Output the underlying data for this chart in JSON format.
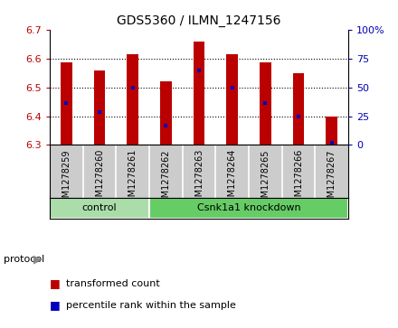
{
  "title": "GDS5360 / ILMN_1247156",
  "samples": [
    "GSM1278259",
    "GSM1278260",
    "GSM1278261",
    "GSM1278262",
    "GSM1278263",
    "GSM1278264",
    "GSM1278265",
    "GSM1278266",
    "GSM1278267"
  ],
  "transformed_counts": [
    6.585,
    6.558,
    6.615,
    6.52,
    6.658,
    6.615,
    6.585,
    6.548,
    6.397
  ],
  "percentile_ranks": [
    6.445,
    6.415,
    6.5,
    6.368,
    6.558,
    6.5,
    6.445,
    6.4,
    6.307
  ],
  "bar_bottom": 6.3,
  "ylim_left": [
    6.3,
    6.7
  ],
  "ylim_right": [
    0,
    100
  ],
  "yticks_left": [
    6.3,
    6.4,
    6.5,
    6.6,
    6.7
  ],
  "yticks_right": [
    0,
    25,
    50,
    75,
    100
  ],
  "bar_color": "#bb0000",
  "percentile_color": "#0000bb",
  "groups": [
    {
      "label": "control",
      "start": 0,
      "end": 2,
      "color": "#aaddaa"
    },
    {
      "label": "Csnk1a1 knockdown",
      "start": 3,
      "end": 8,
      "color": "#66cc66"
    }
  ],
  "protocol_label": "protocol",
  "tick_area_color": "#cccccc",
  "bar_width": 0.35,
  "background_color": "#ffffff",
  "legend_items": [
    {
      "label": "transformed count",
      "color": "#bb0000"
    },
    {
      "label": "percentile rank within the sample",
      "color": "#0000bb"
    }
  ],
  "grid_lines": [
    6.4,
    6.5,
    6.6
  ],
  "title_fontsize": 10,
  "tick_fontsize": 8,
  "sample_fontsize": 7,
  "legend_fontsize": 8
}
